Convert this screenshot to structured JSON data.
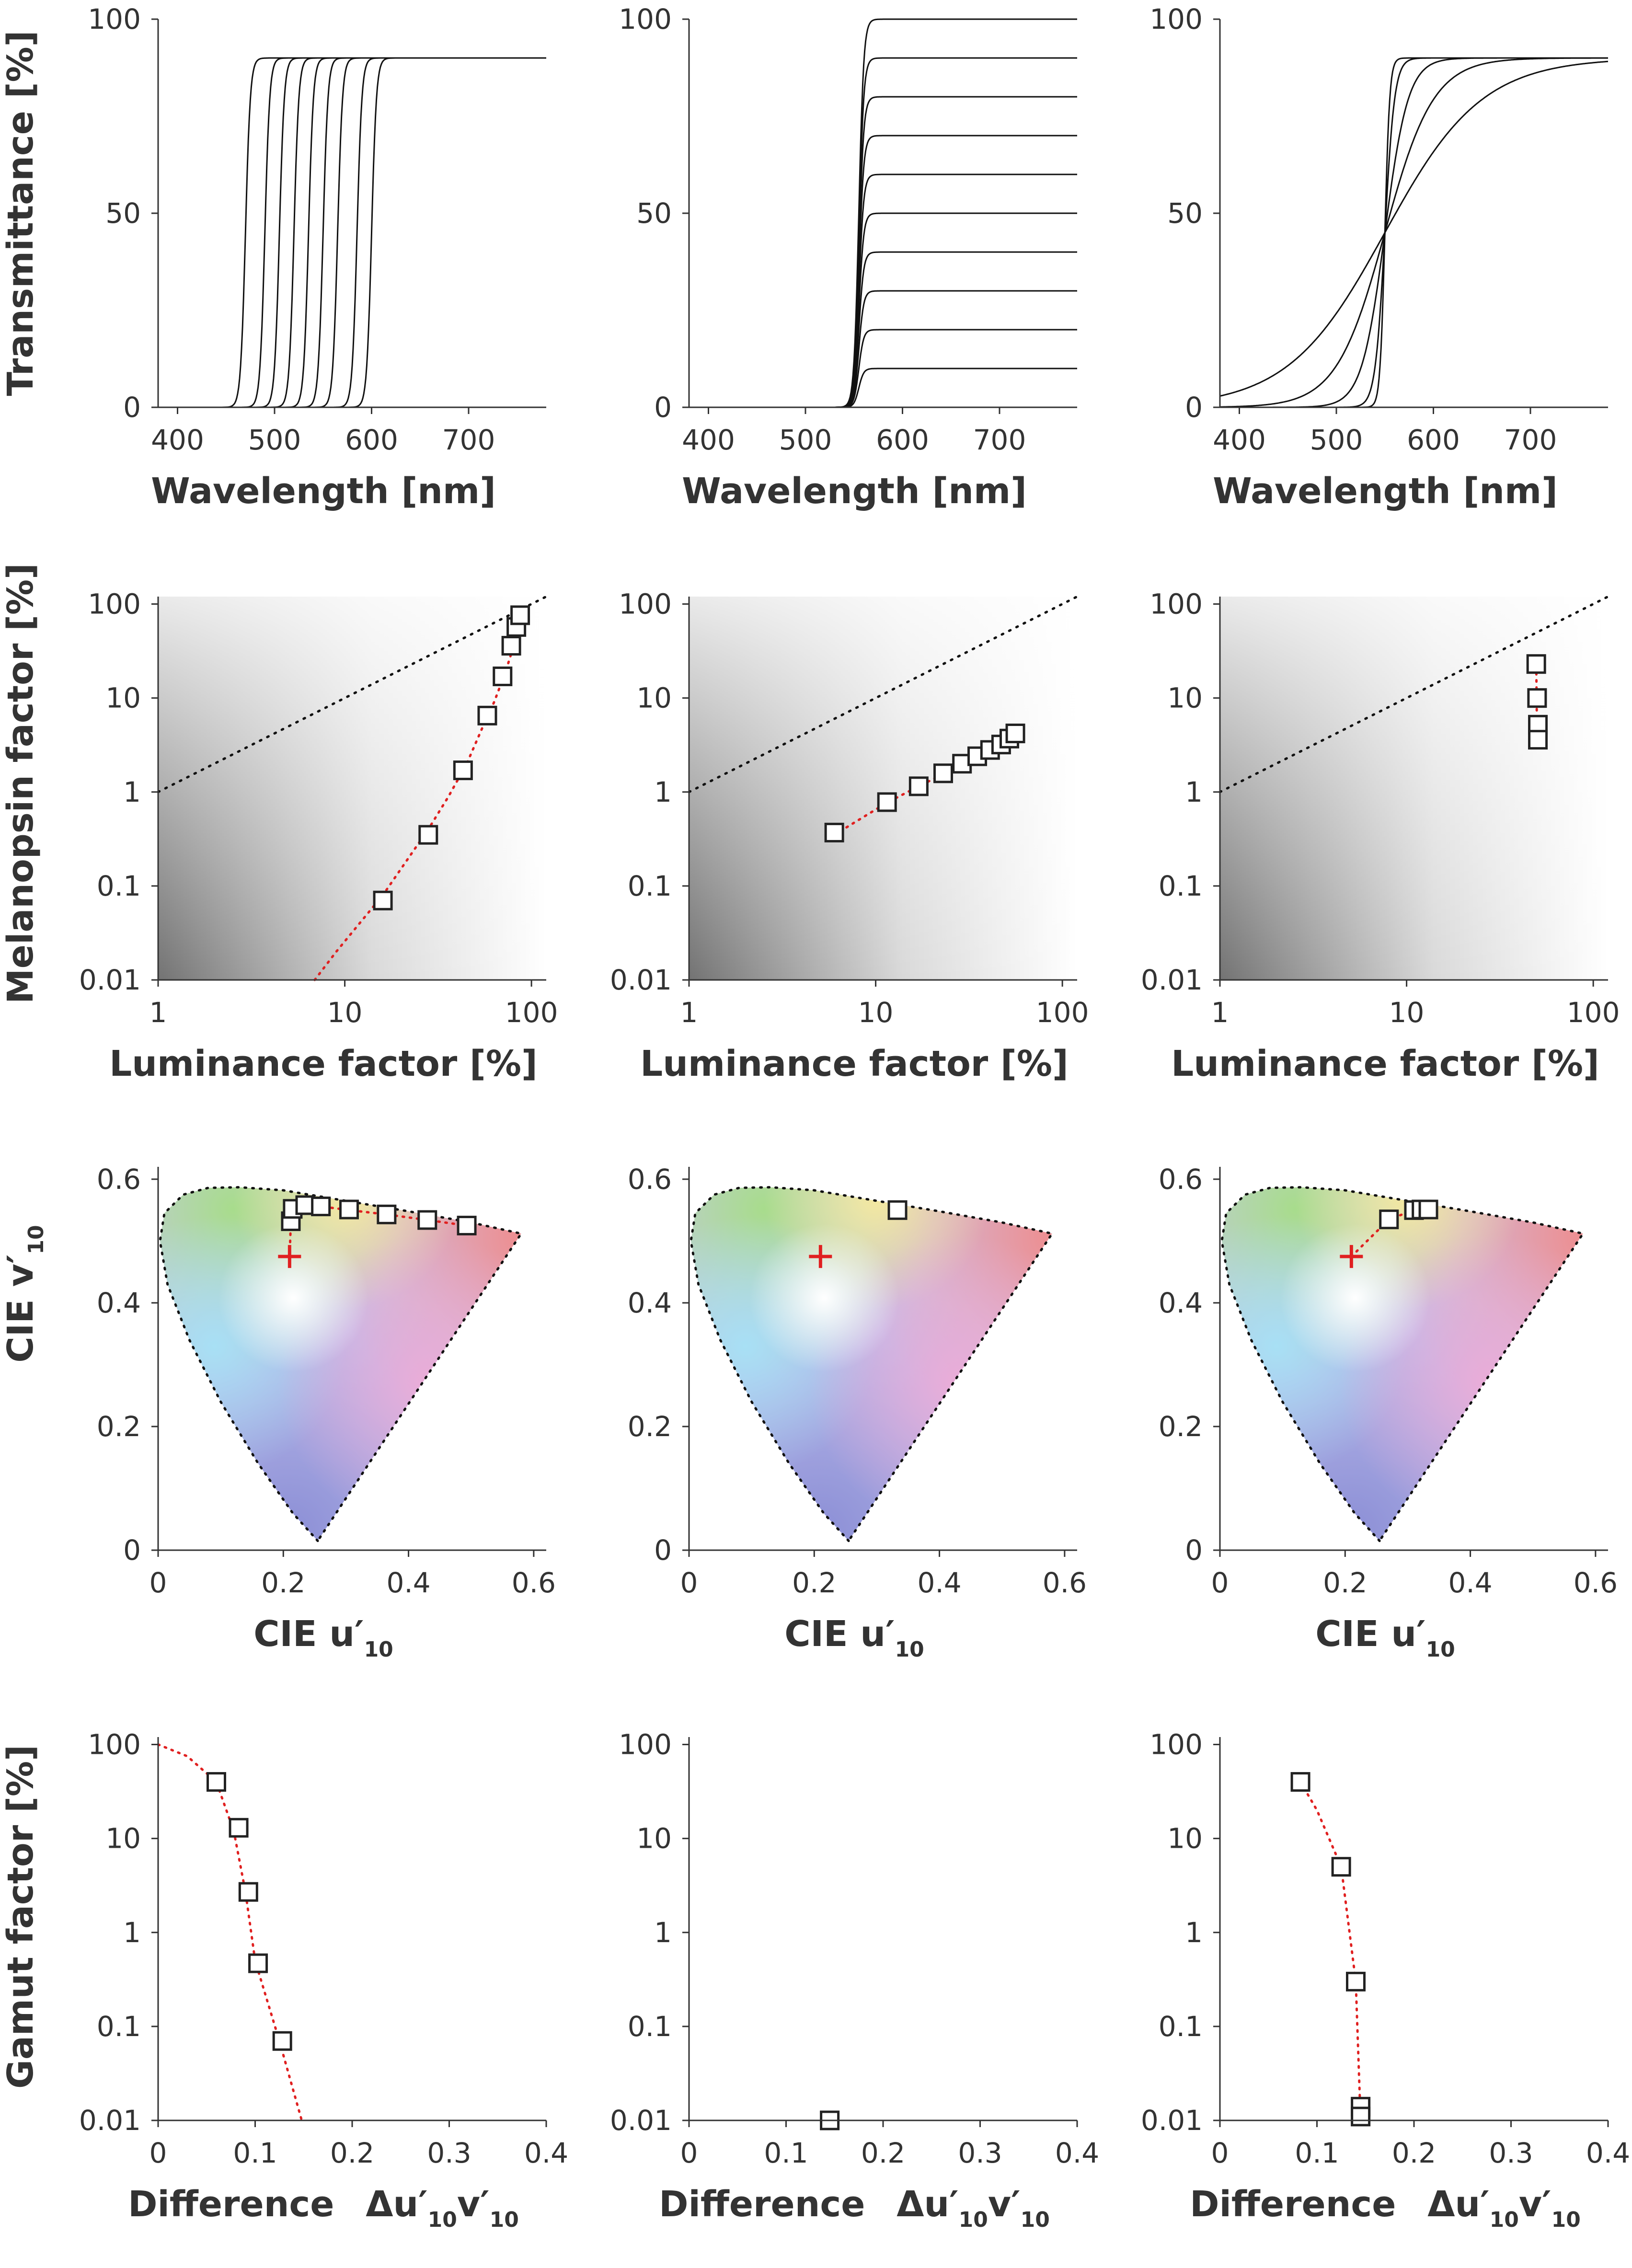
{
  "colors": {
    "fit": "#e02020",
    "white_point": "#e02020",
    "curve": "#111111"
  },
  "labels": {
    "transmittance": "Transmittance [%]",
    "wavelength": "Wavelength [nm]",
    "melanopsin": "Melanopsin factor [%]",
    "luminance": "Luminance factor [%]",
    "cie_v": "CIE v′",
    "cie_u": "CIE u′",
    "cie_sub": "10",
    "gamut": "Gamut factor [%]",
    "difference": "Difference",
    "delta": "Δu′",
    "v_prime": "v′"
  },
  "chart_data": [
    {
      "id": "row1-col1",
      "type": "line",
      "xlim": [
        380,
        780
      ],
      "ylim": [
        0,
        100
      ],
      "xticks": [
        "400",
        "500",
        "600",
        "700"
      ],
      "yticks": [
        "0",
        "50",
        "100"
      ],
      "model": "logistic",
      "grid": false,
      "series": [
        {
          "center": 470,
          "width": 2.5,
          "max": 90
        },
        {
          "center": 490,
          "width": 2.5,
          "max": 90
        },
        {
          "center": 505,
          "width": 2.5,
          "max": 90
        },
        {
          "center": 520,
          "width": 2.5,
          "max": 90
        },
        {
          "center": 535,
          "width": 2.5,
          "max": 90
        },
        {
          "center": 550,
          "width": 2.5,
          "max": 90
        },
        {
          "center": 565,
          "width": 2.5,
          "max": 90
        },
        {
          "center": 585,
          "width": 2.5,
          "max": 90
        },
        {
          "center": 600,
          "width": 2.5,
          "max": 90
        }
      ]
    },
    {
      "id": "row1-col2",
      "type": "line",
      "xlim": [
        380,
        780
      ],
      "ylim": [
        0,
        100
      ],
      "xticks": [
        "400",
        "500",
        "600",
        "700"
      ],
      "yticks": [
        "0",
        "50",
        "100"
      ],
      "model": "logistic",
      "grid": false,
      "series": [
        {
          "center": 555,
          "width": 2.5,
          "max": 10
        },
        {
          "center": 555,
          "width": 2.5,
          "max": 20
        },
        {
          "center": 555,
          "width": 2.5,
          "max": 30
        },
        {
          "center": 555,
          "width": 2.5,
          "max": 40
        },
        {
          "center": 555,
          "width": 2.5,
          "max": 50
        },
        {
          "center": 555,
          "width": 2.5,
          "max": 60
        },
        {
          "center": 555,
          "width": 2.5,
          "max": 70
        },
        {
          "center": 555,
          "width": 2.5,
          "max": 80
        },
        {
          "center": 555,
          "width": 2.5,
          "max": 90
        },
        {
          "center": 555,
          "width": 2.5,
          "max": 100
        }
      ]
    },
    {
      "id": "row1-col3",
      "type": "line",
      "xlim": [
        380,
        780
      ],
      "ylim": [
        0,
        100
      ],
      "xticks": [
        "400",
        "500",
        "600",
        "700"
      ],
      "yticks": [
        "0",
        "50",
        "100"
      ],
      "model": "logistic",
      "grid": false,
      "series": [
        {
          "center": 550,
          "width": 2.5,
          "max": 90
        },
        {
          "center": 550,
          "width": 5,
          "max": 90
        },
        {
          "center": 550,
          "width": 12,
          "max": 90
        },
        {
          "center": 550,
          "width": 25,
          "max": 90
        },
        {
          "center": 550,
          "width": 50,
          "max": 90
        }
      ]
    },
    {
      "id": "row2-col1",
      "type": "scatter",
      "xscale": "log",
      "yscale": "log",
      "xlim": [
        1,
        120
      ],
      "ylim": [
        0.01,
        120
      ],
      "background": "gradient",
      "xticks": [
        "1",
        "10",
        "100"
      ],
      "yticks": [
        "0.01",
        "0.1",
        "1",
        "10",
        "100"
      ],
      "reference": [
        [
          1,
          1
        ],
        [
          120,
          120
        ]
      ],
      "fit": [
        [
          6.9,
          0.01
        ],
        [
          9,
          0.02
        ],
        [
          12,
          0.04
        ],
        [
          16,
          0.08
        ],
        [
          22,
          0.2
        ],
        [
          28,
          0.4
        ],
        [
          36,
          0.9
        ],
        [
          45,
          2
        ],
        [
          55,
          5
        ],
        [
          63,
          9
        ],
        [
          72,
          18
        ],
        [
          80,
          35
        ],
        [
          85,
          55
        ],
        [
          88,
          75
        ]
      ],
      "points": [
        [
          16,
          0.07
        ],
        [
          28,
          0.35
        ],
        [
          43,
          1.7
        ],
        [
          58,
          6.5
        ],
        [
          70,
          17
        ],
        [
          78,
          36
        ],
        [
          83,
          57
        ],
        [
          87,
          76
        ]
      ]
    },
    {
      "id": "row2-col2",
      "type": "scatter",
      "xscale": "log",
      "yscale": "log",
      "xlim": [
        1,
        120
      ],
      "ylim": [
        0.01,
        120
      ],
      "background": "gradient",
      "xticks": [
        "1",
        "10",
        "100"
      ],
      "yticks": [
        "0.01",
        "0.1",
        "1",
        "10",
        "100"
      ],
      "reference": [
        [
          1,
          1
        ],
        [
          120,
          120
        ]
      ],
      "fit": [
        [
          6,
          0.35
        ],
        [
          11.5,
          0.77
        ],
        [
          17,
          1.15
        ],
        [
          23,
          1.55
        ],
        [
          29,
          2
        ],
        [
          35,
          2.4
        ],
        [
          41,
          2.8
        ],
        [
          47,
          3.2
        ],
        [
          52,
          3.6
        ],
        [
          56,
          4
        ]
      ],
      "points": [
        [
          6,
          0.37
        ],
        [
          11.5,
          0.78
        ],
        [
          17,
          1.15
        ],
        [
          23,
          1.58
        ],
        [
          29,
          2.0
        ],
        [
          35,
          2.4
        ],
        [
          41,
          2.8
        ],
        [
          47,
          3.2
        ],
        [
          52,
          3.7
        ],
        [
          56,
          4.2
        ]
      ]
    },
    {
      "id": "row2-col3",
      "type": "scatter",
      "xscale": "log",
      "yscale": "log",
      "xlim": [
        1,
        120
      ],
      "ylim": [
        0.01,
        120
      ],
      "background": "gradient",
      "xticks": [
        "1",
        "10",
        "100"
      ],
      "yticks": [
        "0.01",
        "0.1",
        "1",
        "10",
        "100"
      ],
      "reference": [
        [
          1,
          1
        ],
        [
          120,
          120
        ]
      ],
      "fit": [
        [
          49.5,
          22
        ],
        [
          50,
          3.5
        ]
      ],
      "points": [
        [
          49.5,
          23
        ],
        [
          50,
          10
        ],
        [
          50.5,
          5.2
        ],
        [
          50.5,
          3.6
        ]
      ]
    },
    {
      "id": "row3-col1",
      "type": "scatter",
      "xlim": [
        0,
        0.62
      ],
      "ylim": [
        0,
        0.62
      ],
      "xticks": [
        "0",
        "0.2",
        "0.4",
        "0.6"
      ],
      "yticks": [
        "0",
        "0.2",
        "0.4",
        "0.6"
      ],
      "white_point": [
        0.21,
        0.475
      ],
      "fit": [
        [
          0.21,
          0.475
        ],
        [
          0.212,
          0.53
        ],
        [
          0.215,
          0.55
        ],
        [
          0.235,
          0.558
        ],
        [
          0.26,
          0.556
        ],
        [
          0.305,
          0.55
        ],
        [
          0.365,
          0.543
        ],
        [
          0.43,
          0.534
        ],
        [
          0.493,
          0.525
        ]
      ],
      "points": [
        [
          0.212,
          0.532
        ],
        [
          0.215,
          0.552
        ],
        [
          0.235,
          0.558
        ],
        [
          0.26,
          0.556
        ],
        [
          0.305,
          0.551
        ],
        [
          0.365,
          0.543
        ],
        [
          0.43,
          0.534
        ],
        [
          0.493,
          0.525
        ]
      ]
    },
    {
      "id": "row3-col2",
      "type": "scatter",
      "xlim": [
        0,
        0.62
      ],
      "ylim": [
        0,
        0.62
      ],
      "xticks": [
        "0",
        "0.2",
        "0.4",
        "0.6"
      ],
      "yticks": [
        "0",
        "0.2",
        "0.4",
        "0.6"
      ],
      "white_point": [
        0.21,
        0.475
      ],
      "fit": [],
      "points": [
        [
          0.333,
          0.55
        ]
      ]
    },
    {
      "id": "row3-col3",
      "type": "scatter",
      "xlim": [
        0,
        0.62
      ],
      "ylim": [
        0,
        0.62
      ],
      "xticks": [
        "0",
        "0.2",
        "0.4",
        "0.6"
      ],
      "yticks": [
        "0",
        "0.2",
        "0.4",
        "0.6"
      ],
      "white_point": [
        0.21,
        0.475
      ],
      "fit": [
        [
          0.21,
          0.475
        ],
        [
          0.27,
          0.535
        ],
        [
          0.31,
          0.55
        ],
        [
          0.333,
          0.551
        ]
      ],
      "points": [
        [
          0.27,
          0.535
        ],
        [
          0.31,
          0.55
        ],
        [
          0.322,
          0.551
        ],
        [
          0.333,
          0.551
        ]
      ]
    },
    {
      "id": "row4-col1",
      "type": "scatter",
      "yscale": "log",
      "xlim": [
        0,
        0.4
      ],
      "ylim": [
        0.01,
        120
      ],
      "xticks": [
        "0",
        "0.1",
        "0.2",
        "0.3",
        "0.4"
      ],
      "yticks": [
        "0.01",
        "0.1",
        "1",
        "10",
        "100"
      ],
      "fit": [
        [
          0,
          100
        ],
        [
          0.03,
          75
        ],
        [
          0.06,
          40
        ],
        [
          0.078,
          12
        ],
        [
          0.09,
          2.7
        ],
        [
          0.1,
          0.5
        ],
        [
          0.125,
          0.07
        ],
        [
          0.148,
          0.01
        ]
      ],
      "points": [
        [
          0.06,
          40
        ],
        [
          0.083,
          13
        ],
        [
          0.093,
          2.7
        ],
        [
          0.103,
          0.47
        ],
        [
          0.128,
          0.07
        ]
      ]
    },
    {
      "id": "row4-col2",
      "type": "scatter",
      "yscale": "log",
      "xlim": [
        0,
        0.4
      ],
      "ylim": [
        0.01,
        120
      ],
      "xticks": [
        "0",
        "0.1",
        "0.2",
        "0.3",
        "0.4"
      ],
      "yticks": [
        "0.01",
        "0.1",
        "1",
        "10",
        "100"
      ],
      "fit": [],
      "points": [
        [
          0.145,
          0.01
        ]
      ]
    },
    {
      "id": "row4-col3",
      "type": "scatter",
      "yscale": "log",
      "xlim": [
        0,
        0.4
      ],
      "ylim": [
        0.01,
        120
      ],
      "xticks": [
        "0",
        "0.1",
        "0.2",
        "0.3",
        "0.4"
      ],
      "yticks": [
        "0.01",
        "0.1",
        "1",
        "10",
        "100"
      ],
      "fit": [
        [
          0.083,
          40
        ],
        [
          0.1,
          20
        ],
        [
          0.125,
          5
        ],
        [
          0.14,
          0.3
        ],
        [
          0.145,
          0.01
        ]
      ],
      "points": [
        [
          0.083,
          40
        ],
        [
          0.125,
          5
        ],
        [
          0.14,
          0.3
        ],
        [
          0.145,
          0.014
        ],
        [
          0.145,
          0.011
        ]
      ]
    }
  ]
}
